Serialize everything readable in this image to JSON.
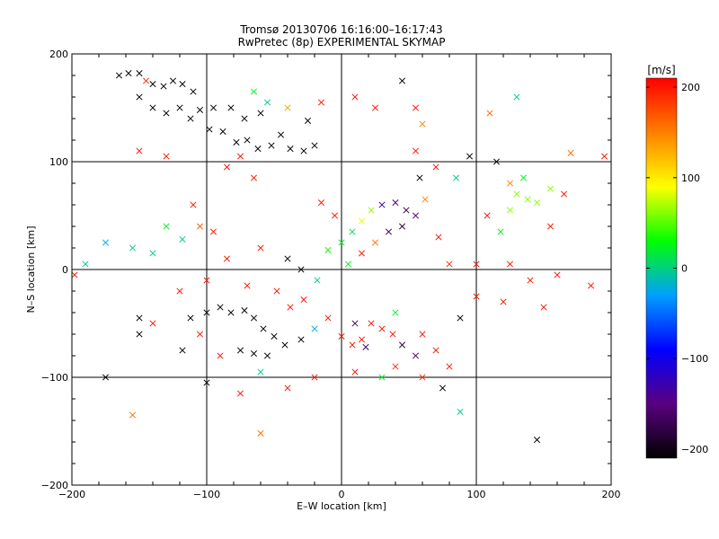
{
  "chart_data": [
    {
      "type": "scatter",
      "title": "Tromsø 20130706 16:16:00–16:17:43",
      "subtitle": "RwPretec (8p) EXPERIMENTAL SKYMAP",
      "xlabel": "E–W location [km]",
      "ylabel": "N–S location [km]",
      "xlim": [
        -200,
        200
      ],
      "ylim": [
        -200,
        200
      ],
      "xticks": [
        "−200",
        "−100",
        "0",
        "100",
        "200"
      ],
      "yticks": [
        "−200",
        "−100",
        "0",
        "100",
        "200"
      ],
      "xtick_values": [
        -200,
        -100,
        0,
        100,
        200
      ],
      "ytick_values": [
        -200,
        -100,
        0,
        100,
        200
      ],
      "grid": true,
      "markers": [
        "dot",
        "x"
      ],
      "color_by": "velocity",
      "series": [
        {
          "marker": "x",
          "points": [
            {
              "x": -165,
              "y": 180,
              "v": -200
            },
            {
              "x": -158,
              "y": 182,
              "v": -200
            },
            {
              "x": -150,
              "y": 182,
              "v": -200
            },
            {
              "x": -145,
              "y": 175,
              "v": 180
            },
            {
              "x": -140,
              "y": 172,
              "v": -200
            },
            {
              "x": -132,
              "y": 170,
              "v": -200
            },
            {
              "x": -125,
              "y": 175,
              "v": -200
            },
            {
              "x": -118,
              "y": 172,
              "v": -200
            },
            {
              "x": -110,
              "y": 165,
              "v": -200
            },
            {
              "x": -150,
              "y": 160,
              "v": -200
            },
            {
              "x": -140,
              "y": 150,
              "v": -200
            },
            {
              "x": -130,
              "y": 145,
              "v": -200
            },
            {
              "x": -120,
              "y": 150,
              "v": -200
            },
            {
              "x": -112,
              "y": 140,
              "v": -200
            },
            {
              "x": -105,
              "y": 148,
              "v": -200
            },
            {
              "x": -95,
              "y": 150,
              "v": -200
            },
            {
              "x": -98,
              "y": 130,
              "v": -200
            },
            {
              "x": -88,
              "y": 128,
              "v": -200
            },
            {
              "x": -78,
              "y": 118,
              "v": -200
            },
            {
              "x": -70,
              "y": 120,
              "v": -200
            },
            {
              "x": -62,
              "y": 112,
              "v": -200
            },
            {
              "x": -52,
              "y": 115,
              "v": -200
            },
            {
              "x": -45,
              "y": 125,
              "v": -200
            },
            {
              "x": -38,
              "y": 112,
              "v": -200
            },
            {
              "x": -28,
              "y": 110,
              "v": -200
            },
            {
              "x": -20,
              "y": 115,
              "v": -200
            },
            {
              "x": -60,
              "y": 145,
              "v": -200
            },
            {
              "x": -72,
              "y": 140,
              "v": -200
            },
            {
              "x": -82,
              "y": 150,
              "v": -200
            },
            {
              "x": -190,
              "y": 5,
              "v": 0
            },
            {
              "x": -175,
              "y": 25,
              "v": -20
            },
            {
              "x": -155,
              "y": 20,
              "v": 0
            },
            {
              "x": -140,
              "y": 15,
              "v": 0
            },
            {
              "x": -118,
              "y": 28,
              "v": 0
            },
            {
              "x": -105,
              "y": 40,
              "v": 160
            },
            {
              "x": -198,
              "y": -5,
              "v": 190
            },
            {
              "x": -150,
              "y": -45,
              "v": -200
            },
            {
              "x": -150,
              "y": -60,
              "v": -200
            },
            {
              "x": -140,
              "y": -50,
              "v": 190
            },
            {
              "x": -118,
              "y": -75,
              "v": -200
            },
            {
              "x": -112,
              "y": -45,
              "v": -200
            },
            {
              "x": -100,
              "y": -40,
              "v": -200
            },
            {
              "x": -90,
              "y": -35,
              "v": -200
            },
            {
              "x": -82,
              "y": -40,
              "v": -200
            },
            {
              "x": -72,
              "y": -38,
              "v": -200
            },
            {
              "x": -65,
              "y": -45,
              "v": -200
            },
            {
              "x": -58,
              "y": -55,
              "v": -200
            },
            {
              "x": -50,
              "y": -62,
              "v": -200
            },
            {
              "x": -42,
              "y": -70,
              "v": -200
            },
            {
              "x": -55,
              "y": -80,
              "v": -200
            },
            {
              "x": -65,
              "y": -78,
              "v": -200
            },
            {
              "x": -75,
              "y": -75,
              "v": -200
            },
            {
              "x": -30,
              "y": -65,
              "v": -200
            },
            {
              "x": -20,
              "y": -55,
              "v": -20
            },
            {
              "x": -10,
              "y": -45,
              "v": 190
            },
            {
              "x": 0,
              "y": -62,
              "v": 190
            },
            {
              "x": 8,
              "y": -70,
              "v": 190
            },
            {
              "x": 15,
              "y": -65,
              "v": 190
            },
            {
              "x": 22,
              "y": -50,
              "v": 190
            },
            {
              "x": 30,
              "y": -55,
              "v": 190
            },
            {
              "x": 38,
              "y": -60,
              "v": 190
            },
            {
              "x": 10,
              "y": -50,
              "v": -150
            },
            {
              "x": 18,
              "y": -72,
              "v": -160
            },
            {
              "x": 45,
              "y": -70,
              "v": -180
            },
            {
              "x": 55,
              "y": -80,
              "v": -150
            },
            {
              "x": 40,
              "y": -90,
              "v": 180
            },
            {
              "x": 60,
              "y": -100,
              "v": 180
            },
            {
              "x": 75,
              "y": -110,
              "v": -200
            },
            {
              "x": 88,
              "y": -45,
              "v": -200
            },
            {
              "x": 88,
              "y": -132,
              "v": 0
            },
            {
              "x": 145,
              "y": -158,
              "v": -200
            },
            {
              "x": -155,
              "y": -135,
              "v": 150
            },
            {
              "x": -60,
              "y": -152,
              "v": 150
            },
            {
              "x": -175,
              "y": -100,
              "v": -200
            },
            {
              "x": -100,
              "y": -105,
              "v": -200
            },
            {
              "x": -48,
              "y": -20,
              "v": 190
            },
            {
              "x": -38,
              "y": -35,
              "v": 190
            },
            {
              "x": -28,
              "y": -28,
              "v": 190
            },
            {
              "x": -40,
              "y": 10,
              "v": -200
            },
            {
              "x": -30,
              "y": 0,
              "v": -200
            },
            {
              "x": -18,
              "y": -10,
              "v": 0
            },
            {
              "x": -10,
              "y": 18,
              "v": 30
            },
            {
              "x": 0,
              "y": 25,
              "v": 20
            },
            {
              "x": 8,
              "y": 35,
              "v": 10
            },
            {
              "x": 15,
              "y": 45,
              "v": 80
            },
            {
              "x": 22,
              "y": 55,
              "v": 60
            },
            {
              "x": 30,
              "y": 60,
              "v": -120
            },
            {
              "x": 40,
              "y": 62,
              "v": -150
            },
            {
              "x": 48,
              "y": 55,
              "v": -170
            },
            {
              "x": 55,
              "y": 50,
              "v": -150
            },
            {
              "x": 45,
              "y": 40,
              "v": -180
            },
            {
              "x": 35,
              "y": 35,
              "v": -160
            },
            {
              "x": 25,
              "y": 25,
              "v": 150
            },
            {
              "x": 15,
              "y": 15,
              "v": 190
            },
            {
              "x": 5,
              "y": 5,
              "v": 20
            },
            {
              "x": -5,
              "y": 50,
              "v": 190
            },
            {
              "x": -15,
              "y": 62,
              "v": 190
            },
            {
              "x": 58,
              "y": 85,
              "v": -200
            },
            {
              "x": 62,
              "y": 65,
              "v": 140
            },
            {
              "x": 72,
              "y": 30,
              "v": 190
            },
            {
              "x": 80,
              "y": 5,
              "v": 180
            },
            {
              "x": 100,
              "y": 5,
              "v": 190
            },
            {
              "x": 125,
              "y": 5,
              "v": 190
            },
            {
              "x": 140,
              "y": -10,
              "v": 190
            },
            {
              "x": 160,
              "y": -5,
              "v": 190
            },
            {
              "x": 185,
              "y": -15,
              "v": 190
            },
            {
              "x": 150,
              "y": -35,
              "v": 190
            },
            {
              "x": 120,
              "y": -30,
              "v": 190
            },
            {
              "x": 100,
              "y": -25,
              "v": 190
            },
            {
              "x": 60,
              "y": 135,
              "v": 140
            },
            {
              "x": 55,
              "y": 150,
              "v": 190
            },
            {
              "x": 45,
              "y": 175,
              "v": -200
            },
            {
              "x": 110,
              "y": 145,
              "v": 150
            },
            {
              "x": 130,
              "y": 160,
              "v": 0
            },
            {
              "x": 95,
              "y": 105,
              "v": -200
            },
            {
              "x": 115,
              "y": 100,
              "v": -200
            },
            {
              "x": 125,
              "y": 80,
              "v": 140
            },
            {
              "x": 130,
              "y": 70,
              "v": 60
            },
            {
              "x": 138,
              "y": 65,
              "v": 60
            },
            {
              "x": 145,
              "y": 62,
              "v": 60
            },
            {
              "x": 155,
              "y": 75,
              "v": 60
            },
            {
              "x": 135,
              "y": 85,
              "v": 20
            },
            {
              "x": 125,
              "y": 55,
              "v": 60
            },
            {
              "x": 165,
              "y": 70,
              "v": 190
            },
            {
              "x": 170,
              "y": 108,
              "v": 150
            },
            {
              "x": 195,
              "y": 105,
              "v": 190
            },
            {
              "x": 118,
              "y": 35,
              "v": 20
            },
            {
              "x": 155,
              "y": 40,
              "v": 190
            },
            {
              "x": 108,
              "y": 50,
              "v": 190
            },
            {
              "x": -150,
              "y": 110,
              "v": 190
            },
            {
              "x": -130,
              "y": 105,
              "v": 190
            },
            {
              "x": -85,
              "y": 95,
              "v": 190
            },
            {
              "x": -65,
              "y": 85,
              "v": 190
            },
            {
              "x": -75,
              "y": 105,
              "v": 190
            },
            {
              "x": -40,
              "y": 150,
              "v": 130
            },
            {
              "x": -55,
              "y": 155,
              "v": 0
            },
            {
              "x": -65,
              "y": 165,
              "v": 20
            },
            {
              "x": -25,
              "y": 138,
              "v": -200
            },
            {
              "x": -15,
              "y": 155,
              "v": 190
            },
            {
              "x": 10,
              "y": 160,
              "v": 190
            },
            {
              "x": 25,
              "y": 150,
              "v": 190
            },
            {
              "x": 55,
              "y": 110,
              "v": 190
            },
            {
              "x": 70,
              "y": 95,
              "v": 190
            },
            {
              "x": 85,
              "y": 85,
              "v": 0
            },
            {
              "x": 40,
              "y": -40,
              "v": 20
            },
            {
              "x": 60,
              "y": -60,
              "v": 190
            },
            {
              "x": 70,
              "y": -75,
              "v": 190
            },
            {
              "x": 80,
              "y": -90,
              "v": 190
            },
            {
              "x": -105,
              "y": -60,
              "v": 190
            },
            {
              "x": -90,
              "y": -80,
              "v": 190
            },
            {
              "x": -120,
              "y": -20,
              "v": 190
            },
            {
              "x": -100,
              "y": -10,
              "v": 190
            },
            {
              "x": -85,
              "y": 10,
              "v": 190
            },
            {
              "x": -70,
              "y": -15,
              "v": 190
            },
            {
              "x": -60,
              "y": 20,
              "v": 190
            },
            {
              "x": -130,
              "y": 40,
              "v": 20
            },
            {
              "x": -110,
              "y": 60,
              "v": 190
            },
            {
              "x": -95,
              "y": 35,
              "v": 190
            },
            {
              "x": -20,
              "y": -100,
              "v": 190
            },
            {
              "x": -40,
              "y": -110,
              "v": 190
            },
            {
              "x": 10,
              "y": -95,
              "v": 190
            },
            {
              "x": 30,
              "y": -100,
              "v": 20
            },
            {
              "x": -75,
              "y": -115,
              "v": 190
            },
            {
              "x": -60,
              "y": -95,
              "v": 0
            }
          ]
        },
        {
          "marker": "dot",
          "points": []
        }
      ]
    },
    {
      "type": "heatmap",
      "title": "[m/s]",
      "colorbar": true,
      "ylim": [
        -210,
        210
      ],
      "ticks": [
        "200",
        "100",
        "0",
        "−100",
        "−200"
      ],
      "tick_values": [
        200,
        100,
        0,
        -100,
        -200
      ],
      "colormap": [
        "#000000",
        "#5a0080",
        "#0000ff",
        "#00a0ff",
        "#00ff00",
        "#ffff00",
        "#ff8000",
        "#ff0000"
      ]
    }
  ]
}
